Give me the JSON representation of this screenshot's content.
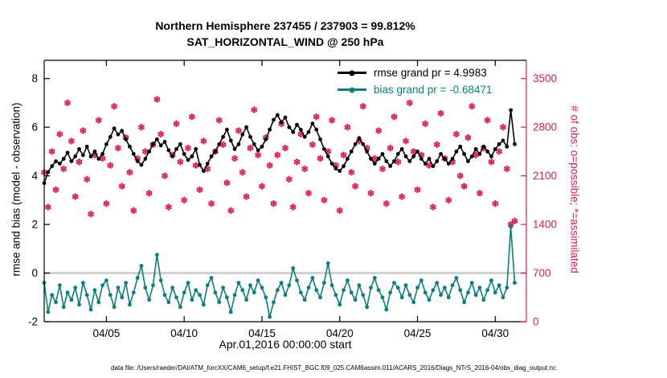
{
  "page": {
    "title_line1": "Northern Hemisphere 237455 / 237903 = 99.812%",
    "title_line2": "SAT_HORIZONTAL_WIND @ 250 hPa",
    "footer": "data file: /Users/raeder/DAI/ATM_forcXX/CAM6_setup/f.e21.FHIST_BGC.f09_025.CAM6assim.011/ACARS_2016/Diags_NTrS_2016-04/obs_diag_output.nc"
  },
  "chart_data": {
    "type": "line",
    "title": "Northern Hemisphere 237455 / 237903 = 99.812%",
    "subtitle": "SAT_HORIZONTAL_WIND @ 250 hPa",
    "xlabel": "Apr.01,2016 00:00:00 start",
    "ylabel_left": "rmse and bias (model - observation)",
    "ylabel_right": "# of obs: o=possible; *=assimilated",
    "legend_position": "top-right-inside",
    "grid": false,
    "xlim": [
      0,
      31
    ],
    "x_start_days": 0,
    "x_step_days": 0.25,
    "xticks": [
      {
        "value": 4,
        "label": "04/05"
      },
      {
        "value": 9,
        "label": "04/10"
      },
      {
        "value": 14,
        "label": "04/15"
      },
      {
        "value": 19,
        "label": "04/20"
      },
      {
        "value": 24,
        "label": "04/25"
      },
      {
        "value": 29,
        "label": "04/30"
      }
    ],
    "ylim_left": [
      -2,
      8.75
    ],
    "ytick_left": [
      -2,
      0,
      2,
      4,
      6,
      8
    ],
    "ylim_right": [
      0,
      3762.5
    ],
    "ytick_right": [
      0,
      700,
      1400,
      2100,
      2800,
      3500
    ],
    "zero_line": 0,
    "colors": {
      "zero_line": "#c8c8c8",
      "axis": "#000000",
      "right_axis": "#dc1c5c"
    },
    "series": [
      {
        "name": "rmse",
        "legend": "rmse grand pr = 4.9983",
        "color": "#000000",
        "axis": "left",
        "style": "line-dot",
        "values": [
          3.7,
          4.15,
          4.4,
          4.6,
          4.5,
          4.7,
          4.95,
          4.6,
          4.8,
          5.1,
          4.85,
          5.2,
          4.8,
          5.0,
          4.7,
          4.9,
          5.3,
          5.6,
          5.95,
          5.7,
          5.85,
          5.5,
          5.2,
          4.9,
          4.6,
          4.45,
          4.7,
          5.0,
          5.3,
          5.5,
          5.25,
          5.4,
          5.05,
          4.8,
          5.1,
          5.3,
          4.9,
          4.65,
          4.8,
          5.1,
          4.45,
          4.2,
          4.5,
          4.8,
          5.0,
          5.3,
          5.6,
          5.9,
          5.45,
          5.1,
          5.3,
          5.7,
          6.0,
          5.6,
          5.3,
          5.05,
          5.2,
          5.5,
          5.9,
          6.3,
          6.5,
          6.2,
          6.4,
          6.0,
          5.8,
          6.1,
          5.9,
          5.6,
          5.8,
          6.15,
          5.9,
          5.5,
          5.1,
          4.8,
          4.5,
          4.3,
          4.2,
          4.4,
          4.7,
          5.0,
          5.3,
          5.55,
          5.3,
          5.0,
          4.7,
          4.5,
          4.7,
          4.9,
          4.6,
          4.4,
          4.6,
          4.9,
          5.1,
          4.8,
          4.6,
          4.8,
          5.0,
          4.7,
          4.5,
          4.7,
          4.4,
          4.6,
          4.9,
          4.7,
          4.5,
          4.7,
          5.0,
          5.2,
          4.9,
          4.6,
          4.8,
          5.1,
          4.9,
          5.2,
          5.0,
          4.8,
          5.1,
          5.3,
          5.45,
          5.2,
          6.7,
          5.3
        ]
      },
      {
        "name": "bias",
        "legend": "bias grand pr = -0.68471",
        "color": "#0b7f7f",
        "axis": "left",
        "style": "line-dot",
        "values": [
          -0.4,
          -1.6,
          -0.9,
          -1.2,
          -0.5,
          -1.4,
          -0.8,
          -1.1,
          -0.6,
          -1.3,
          -0.4,
          -0.9,
          -1.5,
          -0.7,
          -1.2,
          -0.5,
          -0.3,
          -0.9,
          -1.4,
          -0.6,
          -1.0,
          -0.4,
          -1.3,
          -0.8,
          -0.2,
          0.3,
          -0.6,
          -1.1,
          -0.5,
          0.75,
          -0.3,
          -0.9,
          -1.2,
          -0.6,
          -1.0,
          -1.4,
          -0.8,
          -0.4,
          -1.1,
          -0.7,
          -0.9,
          -1.3,
          -0.5,
          -0.2,
          -0.8,
          -1.2,
          -0.6,
          -1.0,
          -1.6,
          -0.9,
          -0.4,
          -0.7,
          -1.1,
          -0.5,
          -0.8,
          -0.3,
          -0.6,
          -1.0,
          -1.8,
          -1.2,
          -0.7,
          -0.4,
          -0.9,
          -0.5,
          0.2,
          -0.3,
          -0.8,
          -1.1,
          -0.6,
          -0.2,
          -0.7,
          -1.0,
          -0.4,
          0.4,
          -0.5,
          -0.9,
          -1.3,
          -0.7,
          -0.3,
          -0.8,
          -1.1,
          -0.5,
          -0.9,
          -1.4,
          -0.6,
          -0.2,
          -0.7,
          -1.0,
          -1.5,
          -0.8,
          -0.4,
          -0.6,
          -1.0,
          -0.5,
          -0.9,
          -1.2,
          -0.6,
          -0.3,
          -0.8,
          -1.1,
          -0.7,
          -0.4,
          -0.9,
          -0.6,
          -1.0,
          -0.5,
          -0.2,
          -0.7,
          -1.2,
          -0.8,
          -0.4,
          -0.9,
          -0.6,
          -1.1,
          -0.7,
          -0.3,
          -0.8,
          -0.5,
          -1.0,
          -0.6,
          1.9,
          -0.4
        ]
      },
      {
        "name": "obs-assimilated",
        "legend": "",
        "color": "#dc1c5c",
        "axis": "right",
        "style": "scatter-star",
        "values": [
          2150,
          1650,
          2450,
          1900,
          2700,
          2200,
          3150,
          2600,
          1800,
          2300,
          2750,
          2050,
          1550,
          2400,
          2900,
          2350,
          1700,
          2250,
          3100,
          2500,
          1950,
          2650,
          2150,
          1600,
          2350,
          2800,
          2450,
          1850,
          2550,
          3200,
          2700,
          2100,
          1650,
          2400,
          2850,
          2300,
          1750,
          2500,
          2950,
          2250,
          1900,
          2600,
          2200,
          1700,
          2450,
          2900,
          2550,
          2000,
          1600,
          2350,
          2750,
          2150,
          1800,
          2500,
          3050,
          2400,
          1950,
          2650,
          2250,
          1700,
          2400,
          2850,
          2500,
          2050,
          1650,
          2300,
          2700,
          2200,
          1850,
          2550,
          2950,
          2350,
          1750,
          2450,
          2900,
          2250,
          1600,
          2400,
          2800,
          2150,
          1950,
          2600,
          3100,
          2500,
          1850,
          2350,
          2750,
          2200,
          1700,
          2500,
          2950,
          2300,
          1800,
          2600,
          3150,
          2450,
          1900,
          2400,
          2850,
          2250,
          1650,
          2550,
          3000,
          2350,
          1750,
          2300,
          2700,
          2100,
          1950,
          2650,
          3100,
          2400,
          1850,
          2500,
          2900,
          2300,
          1700,
          2450,
          2800,
          2200,
          1400,
          1450
        ]
      }
    ]
  }
}
